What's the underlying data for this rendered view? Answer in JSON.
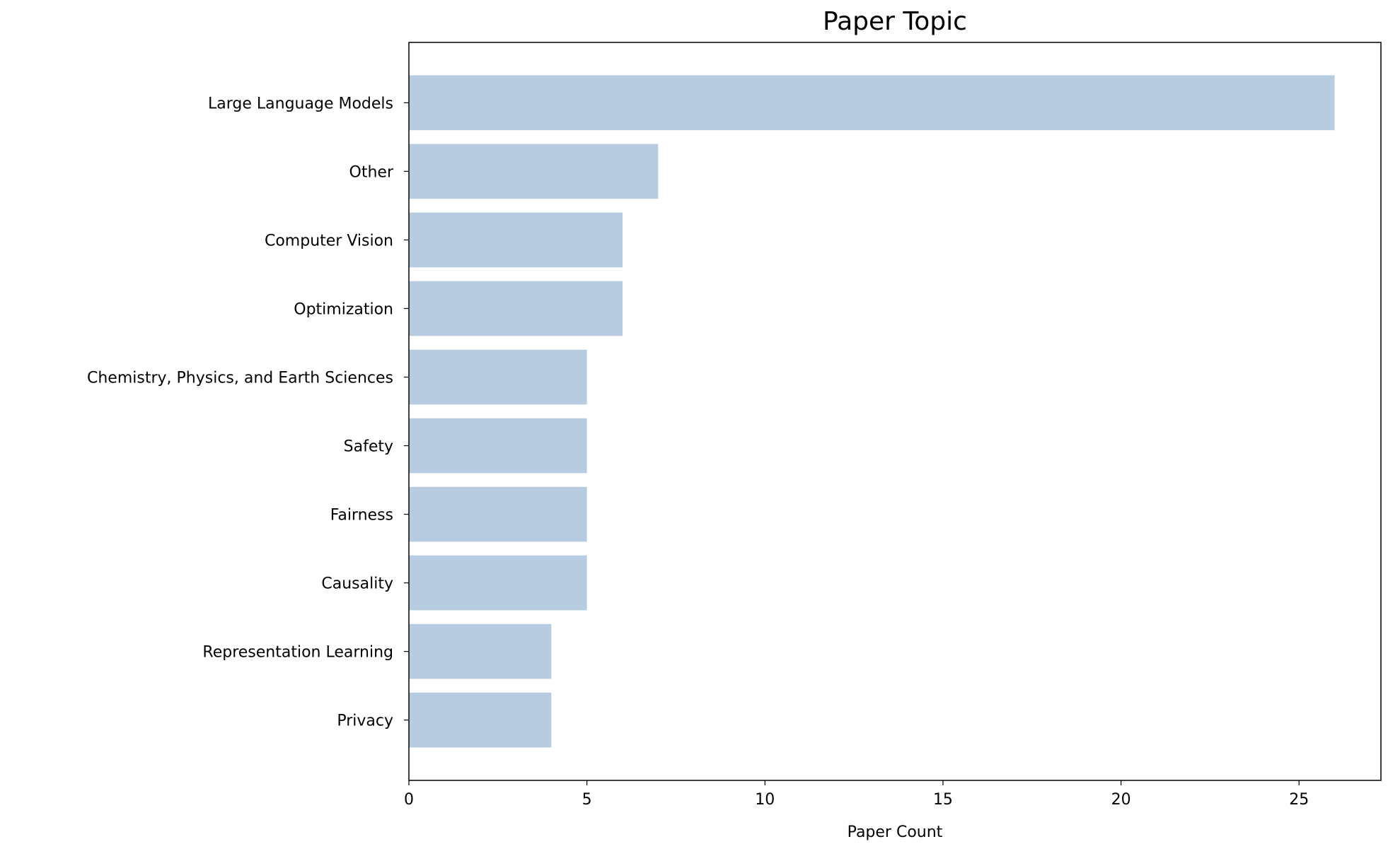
{
  "chart_data": {
    "type": "bar",
    "orientation": "horizontal",
    "title": "Paper Topic",
    "xlabel": "Paper Count",
    "ylabel": "",
    "categories": [
      "Large Language Models",
      "Other",
      "Computer Vision",
      "Optimization",
      "Chemistry, Physics, and Earth Sciences",
      "Safety",
      "Fairness",
      "Causality",
      "Representation Learning",
      "Privacy"
    ],
    "values": [
      26,
      7,
      6,
      6,
      5,
      5,
      5,
      5,
      4,
      4
    ],
    "xlim": [
      0,
      27.3
    ],
    "xticks": [
      "0",
      "5",
      "10",
      "15",
      "20",
      "25"
    ],
    "grid": false,
    "bar_color": "#b8cce1"
  }
}
